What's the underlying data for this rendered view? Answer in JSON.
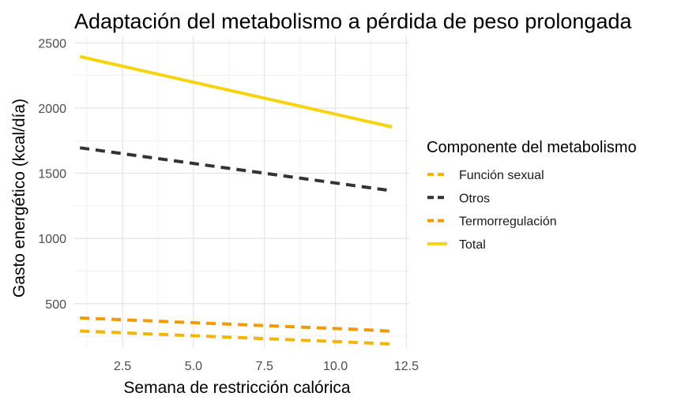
{
  "chart_data": {
    "type": "line",
    "title": "Adaptación del metabolismo a pérdida de peso prolongada",
    "xlabel": "Semana de restricción calórica",
    "ylabel": "Gasto energético (kcal/día)",
    "xlim": [
      0.8,
      12.6
    ],
    "ylim": [
      160,
      2550
    ],
    "x_ticks": [
      2.5,
      5.0,
      7.5,
      10.0,
      12.5
    ],
    "x_tick_labels": [
      "2.5",
      "5.0",
      "7.5",
      "10.0",
      "12.5"
    ],
    "y_ticks": [
      500,
      1000,
      1500,
      2000,
      2500
    ],
    "y_tick_labels": [
      "500",
      "1000",
      "1500",
      "2000",
      "2500"
    ],
    "grid": true,
    "legend": {
      "title": "Componente del metabolismo",
      "placement": "right"
    },
    "x": [
      1,
      2,
      3,
      4,
      5,
      6,
      7,
      8,
      9,
      10,
      11,
      12
    ],
    "series": [
      {
        "name": "Función sexual",
        "color": "#F2B50A",
        "dash": "dashed",
        "values": [
          290,
          281,
          272,
          263,
          254,
          245,
          236,
          227,
          218,
          209,
          200,
          190
        ]
      },
      {
        "name": "Otros",
        "color": "#333333",
        "dash": "dashed",
        "values": [
          1695,
          1665,
          1635,
          1605,
          1575,
          1545,
          1515,
          1485,
          1455,
          1425,
          1395,
          1365
        ]
      },
      {
        "name": "Termorregulación",
        "color": "#F29A0A",
        "dash": "dashed",
        "values": [
          390,
          381,
          372,
          363,
          354,
          345,
          336,
          327,
          318,
          309,
          300,
          288
        ]
      },
      {
        "name": "Total",
        "color": "#F7D40F",
        "dash": "solid",
        "values": [
          2395,
          2345,
          2296,
          2247,
          2198,
          2149,
          2100,
          2051,
          2002,
          1953,
          1904,
          1855
        ]
      }
    ]
  }
}
